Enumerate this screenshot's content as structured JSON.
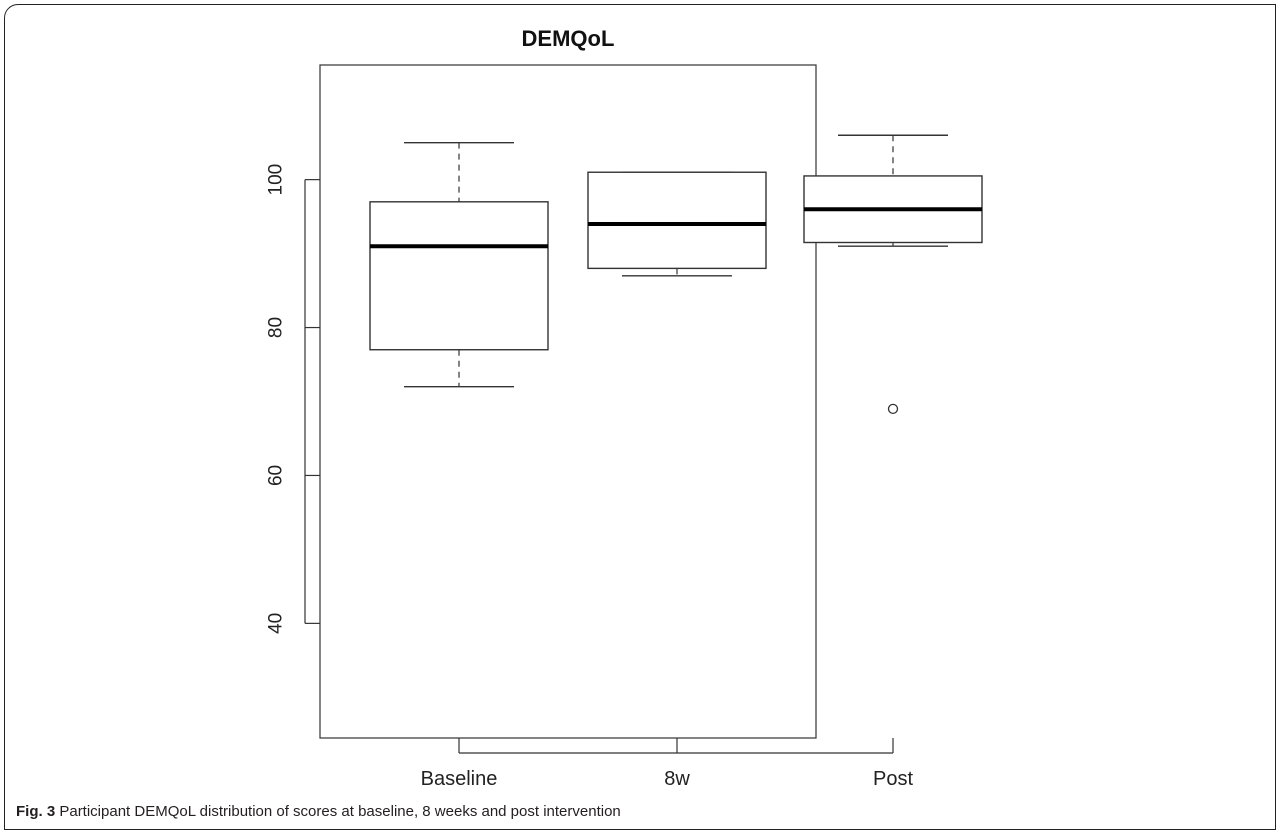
{
  "caption": {
    "label": "Fig. 3",
    "text": "Participant DEMQoL distribution of scores at baseline, 8 weeks and post intervention"
  },
  "chart_data": {
    "type": "boxplot",
    "title": "DEMQoL",
    "xlabel": "",
    "ylabel": "",
    "categories": [
      "Baseline",
      "8w",
      "Post"
    ],
    "ylim": [
      24.5,
      115.5
    ],
    "yticks": [
      40,
      60,
      80,
      100
    ],
    "grid": false,
    "boxes": [
      {
        "category": "Baseline",
        "whisker_low": 72,
        "q1": 77,
        "median": 91,
        "q3": 97,
        "whisker_high": 105,
        "outliers": []
      },
      {
        "category": "8w",
        "whisker_low": 87,
        "q1": 88,
        "median": 94,
        "q3": 101,
        "whisker_high": 101,
        "outliers": []
      },
      {
        "category": "Post",
        "whisker_low": 91,
        "q1": 91.5,
        "median": 96,
        "q3": 100.5,
        "whisker_high": 106,
        "outliers": [
          69
        ]
      }
    ]
  }
}
